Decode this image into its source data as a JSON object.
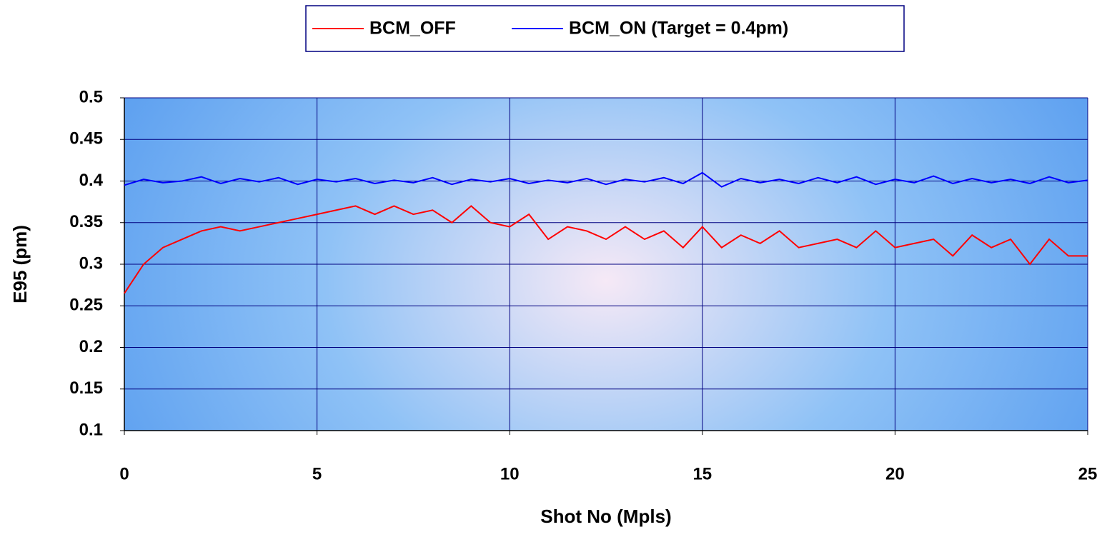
{
  "chart_data": {
    "type": "line",
    "x_label": "Shot No (Mpls)",
    "y_label": "E95 (pm)",
    "legend": "top",
    "grid": true,
    "xlim": [
      0,
      25
    ],
    "xticks": [
      0,
      5,
      10,
      15,
      20,
      25
    ],
    "ylim": [
      0.1,
      0.5
    ],
    "yticks": [
      0.1,
      0.15,
      0.2,
      0.25,
      0.3,
      0.35,
      0.4,
      0.45,
      0.5
    ],
    "x": [
      0,
      0.5,
      1,
      1.5,
      2,
      2.5,
      3,
      3.5,
      4,
      4.5,
      5,
      5.5,
      6,
      6.5,
      7,
      7.5,
      8,
      8.5,
      9,
      9.5,
      10,
      10.5,
      11,
      11.5,
      12,
      12.5,
      13,
      13.5,
      14,
      14.5,
      15,
      15.5,
      16,
      16.5,
      17,
      17.5,
      18,
      18.5,
      19,
      19.5,
      20,
      20.5,
      21,
      21.5,
      22,
      22.5,
      23,
      23.5,
      24,
      24.5,
      25
    ],
    "series": [
      {
        "name": "BCM_OFF",
        "color": "#ff0000",
        "values": [
          0.265,
          0.3,
          0.32,
          0.33,
          0.34,
          0.345,
          0.34,
          0.345,
          0.35,
          0.355,
          0.36,
          0.365,
          0.37,
          0.36,
          0.37,
          0.36,
          0.365,
          0.35,
          0.37,
          0.35,
          0.345,
          0.36,
          0.33,
          0.345,
          0.34,
          0.33,
          0.345,
          0.33,
          0.34,
          0.32,
          0.345,
          0.32,
          0.335,
          0.325,
          0.34,
          0.32,
          0.325,
          0.33,
          0.32,
          0.34,
          0.32,
          0.325,
          0.33,
          0.31,
          0.335,
          0.32,
          0.33,
          0.3,
          0.33,
          0.31,
          0.31
        ]
      },
      {
        "name": "BCM_ON (Target = 0.4pm)",
        "color": "#0000ff",
        "values": [
          0.395,
          0.402,
          0.398,
          0.4,
          0.405,
          0.397,
          0.403,
          0.399,
          0.404,
          0.396,
          0.402,
          0.399,
          0.403,
          0.397,
          0.401,
          0.398,
          0.404,
          0.396,
          0.402,
          0.399,
          0.403,
          0.397,
          0.401,
          0.398,
          0.403,
          0.396,
          0.402,
          0.399,
          0.404,
          0.397,
          0.41,
          0.393,
          0.403,
          0.398,
          0.402,
          0.397,
          0.404,
          0.398,
          0.405,
          0.396,
          0.402,
          0.398,
          0.406,
          0.397,
          0.403,
          0.398,
          0.402,
          0.397,
          0.405,
          0.398,
          0.401
        ]
      }
    ]
  }
}
